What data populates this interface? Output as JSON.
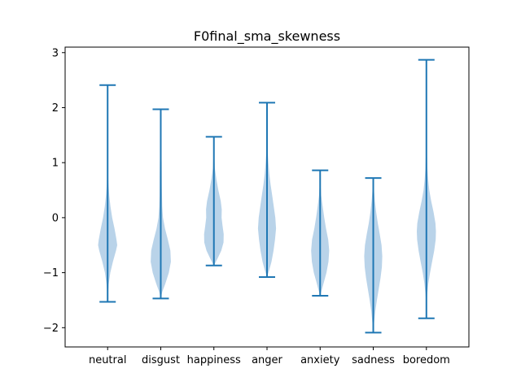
{
  "chart_data": {
    "type": "violin",
    "title": "F0final_sma_skewness",
    "xlabel": "",
    "ylabel": "",
    "ylim": [
      -2.35,
      3.1
    ],
    "yticks": [
      -2,
      -1,
      0,
      1,
      2,
      3
    ],
    "ytick_labels": [
      "−2",
      "−1",
      "0",
      "1",
      "2",
      "3"
    ],
    "categories": [
      "neutral",
      "disgust",
      "happiness",
      "anger",
      "anxiety",
      "sadness",
      "boredom"
    ],
    "series": [
      {
        "category": "neutral",
        "min": -1.53,
        "max": 2.41,
        "mode": -0.5,
        "mode_halfwidth": 0.18,
        "profile": [
          [
            -1.53,
            0.0
          ],
          [
            -1.4,
            0.03
          ],
          [
            -1.2,
            0.12
          ],
          [
            -1.0,
            0.28
          ],
          [
            -0.8,
            0.55
          ],
          [
            -0.6,
            0.88
          ],
          [
            -0.5,
            1.0
          ],
          [
            -0.4,
            0.93
          ],
          [
            -0.2,
            0.72
          ],
          [
            0.0,
            0.48
          ],
          [
            0.2,
            0.3
          ],
          [
            0.4,
            0.17
          ],
          [
            0.6,
            0.09
          ],
          [
            0.8,
            0.04
          ],
          [
            1.2,
            0.02
          ],
          [
            1.8,
            0.008
          ],
          [
            2.41,
            0.0
          ]
        ]
      },
      {
        "category": "disgust",
        "min": -1.47,
        "max": 1.97,
        "mode": -0.75,
        "mode_halfwidth": 0.19,
        "profile": [
          [
            -1.47,
            0.0
          ],
          [
            -1.35,
            0.15
          ],
          [
            -1.2,
            0.45
          ],
          [
            -1.0,
            0.8
          ],
          [
            -0.8,
            1.0
          ],
          [
            -0.6,
            0.95
          ],
          [
            -0.4,
            0.7
          ],
          [
            -0.2,
            0.42
          ],
          [
            0.0,
            0.22
          ],
          [
            0.2,
            0.15
          ],
          [
            0.4,
            0.12
          ],
          [
            0.6,
            0.11
          ],
          [
            0.8,
            0.1
          ],
          [
            1.0,
            0.09
          ],
          [
            1.2,
            0.06
          ],
          [
            1.5,
            0.03
          ],
          [
            1.97,
            0.0
          ]
        ]
      },
      {
        "category": "happiness",
        "min": -0.87,
        "max": 1.47,
        "mode": -0.3,
        "mode_halfwidth": 0.185,
        "profile": [
          [
            -0.87,
            0.0
          ],
          [
            -0.75,
            0.35
          ],
          [
            -0.6,
            0.75
          ],
          [
            -0.45,
            0.98
          ],
          [
            -0.3,
            1.0
          ],
          [
            -0.15,
            0.88
          ],
          [
            0.0,
            0.78
          ],
          [
            0.15,
            0.8
          ],
          [
            0.3,
            0.7
          ],
          [
            0.5,
            0.45
          ],
          [
            0.7,
            0.25
          ],
          [
            0.9,
            0.1
          ],
          [
            1.1,
            0.05
          ],
          [
            1.3,
            0.02
          ],
          [
            1.47,
            0.0
          ]
        ]
      },
      {
        "category": "anger",
        "min": -1.08,
        "max": 2.09,
        "mode": -0.15,
        "mode_halfwidth": 0.17,
        "profile": [
          [
            -1.08,
            0.0
          ],
          [
            -0.95,
            0.25
          ],
          [
            -0.8,
            0.5
          ],
          [
            -0.6,
            0.72
          ],
          [
            -0.4,
            0.88
          ],
          [
            -0.2,
            1.0
          ],
          [
            0.0,
            0.92
          ],
          [
            0.2,
            0.75
          ],
          [
            0.4,
            0.58
          ],
          [
            0.6,
            0.4
          ],
          [
            0.8,
            0.25
          ],
          [
            1.0,
            0.15
          ],
          [
            1.2,
            0.08
          ],
          [
            1.5,
            0.03
          ],
          [
            2.09,
            0.0
          ]
        ]
      },
      {
        "category": "anxiety",
        "min": -1.42,
        "max": 0.86,
        "mode": -0.6,
        "mode_halfwidth": 0.17,
        "profile": [
          [
            -1.42,
            0.0
          ],
          [
            -1.3,
            0.2
          ],
          [
            -1.15,
            0.45
          ],
          [
            -1.0,
            0.7
          ],
          [
            -0.8,
            0.92
          ],
          [
            -0.6,
            1.0
          ],
          [
            -0.4,
            0.9
          ],
          [
            -0.2,
            0.65
          ],
          [
            0.0,
            0.45
          ],
          [
            0.2,
            0.28
          ],
          [
            0.4,
            0.12
          ],
          [
            0.6,
            0.05
          ],
          [
            0.86,
            0.0
          ]
        ]
      },
      {
        "category": "sadness",
        "min": -2.09,
        "max": 0.72,
        "mode": -0.7,
        "mode_halfwidth": 0.17,
        "profile": [
          [
            -2.09,
            0.0
          ],
          [
            -1.9,
            0.1
          ],
          [
            -1.7,
            0.22
          ],
          [
            -1.5,
            0.4
          ],
          [
            -1.3,
            0.6
          ],
          [
            -1.1,
            0.8
          ],
          [
            -0.9,
            0.95
          ],
          [
            -0.7,
            1.0
          ],
          [
            -0.5,
            0.92
          ],
          [
            -0.3,
            0.72
          ],
          [
            -0.1,
            0.5
          ],
          [
            0.1,
            0.32
          ],
          [
            0.3,
            0.18
          ],
          [
            0.5,
            0.08
          ],
          [
            0.72,
            0.0
          ]
        ]
      },
      {
        "category": "boredom",
        "min": -1.83,
        "max": 2.87,
        "mode": -0.25,
        "mode_halfwidth": 0.18,
        "profile": [
          [
            -1.83,
            0.0
          ],
          [
            -1.6,
            0.02
          ],
          [
            -1.4,
            0.08
          ],
          [
            -1.2,
            0.2
          ],
          [
            -1.0,
            0.38
          ],
          [
            -0.8,
            0.6
          ],
          [
            -0.6,
            0.82
          ],
          [
            -0.4,
            0.97
          ],
          [
            -0.25,
            1.0
          ],
          [
            -0.1,
            0.95
          ],
          [
            0.1,
            0.75
          ],
          [
            0.3,
            0.5
          ],
          [
            0.5,
            0.3
          ],
          [
            0.7,
            0.18
          ],
          [
            0.9,
            0.1
          ],
          [
            1.2,
            0.05
          ],
          [
            1.6,
            0.02
          ],
          [
            2.2,
            0.008
          ],
          [
            2.87,
            0.0
          ]
        ]
      }
    ],
    "colors": {
      "line": "#1f77b4",
      "fill": "#b9d3e9",
      "axis": "#000000"
    },
    "grid": false,
    "legend": "none"
  }
}
